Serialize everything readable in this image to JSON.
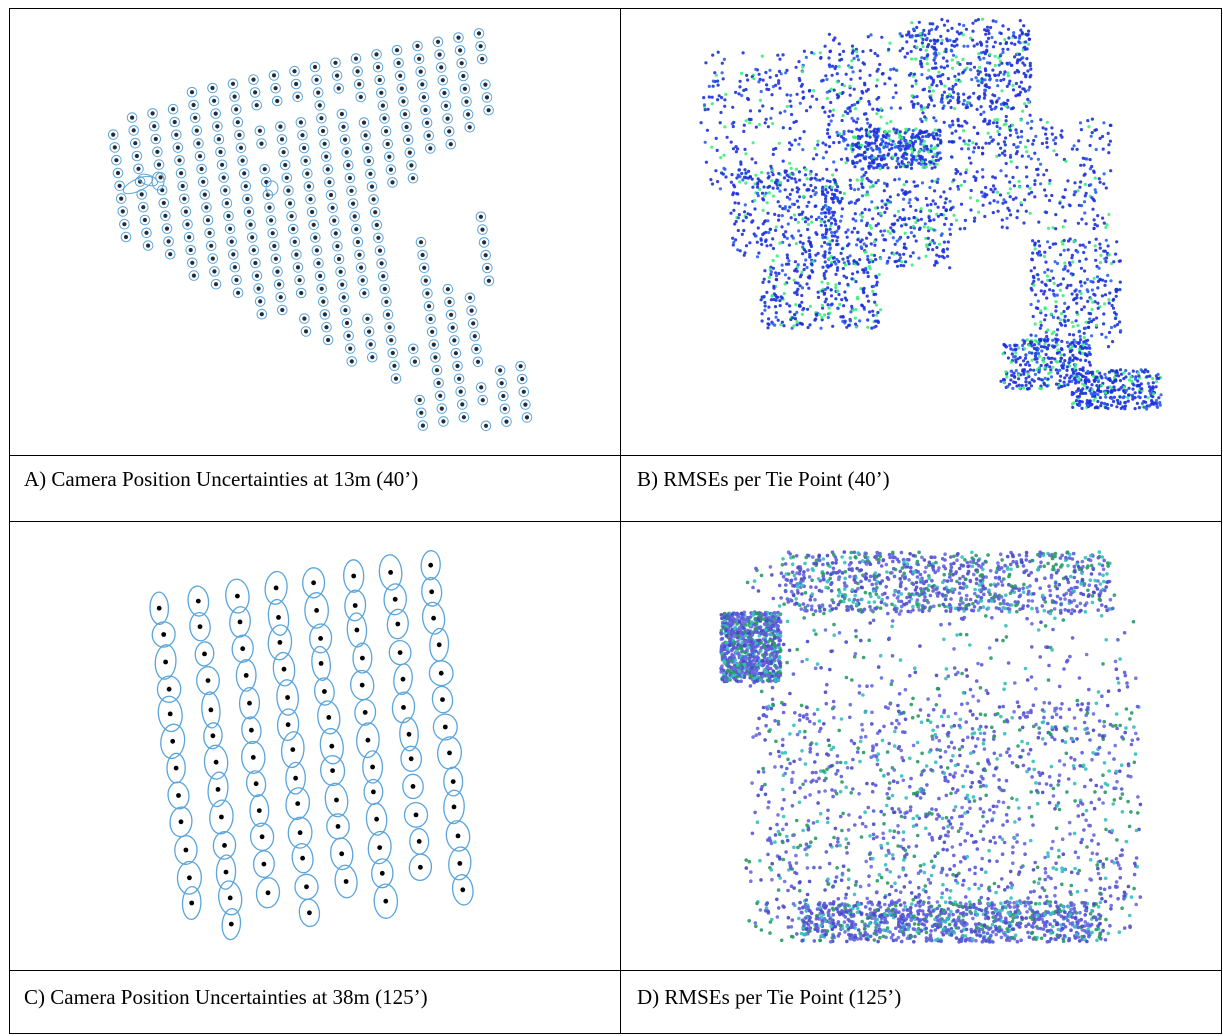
{
  "panels": [
    {
      "id": "A",
      "caption": "A)  Camera Position Uncertainties at 13m (40’)"
    },
    {
      "id": "B",
      "caption": "B)  RMSEs per Tie Point (40’)"
    },
    {
      "id": "C",
      "caption": "C)  Camera Position Uncertainties at 38m (125’)"
    },
    {
      "id": "D",
      "caption": "D)  RMSEs per Tie Point (125’)"
    }
  ],
  "colors": {
    "border": "#000000",
    "ellipse": "#5aa5dc",
    "camera_dot": "#000000",
    "cloud_40_blue": "#1f2fe0",
    "cloud_40_green": "#3cf07a",
    "cloud_125_violet": "#5a5ad8",
    "cloud_125_teal": "#33c1bd",
    "cloud_125_green": "#2a9a62"
  }
}
